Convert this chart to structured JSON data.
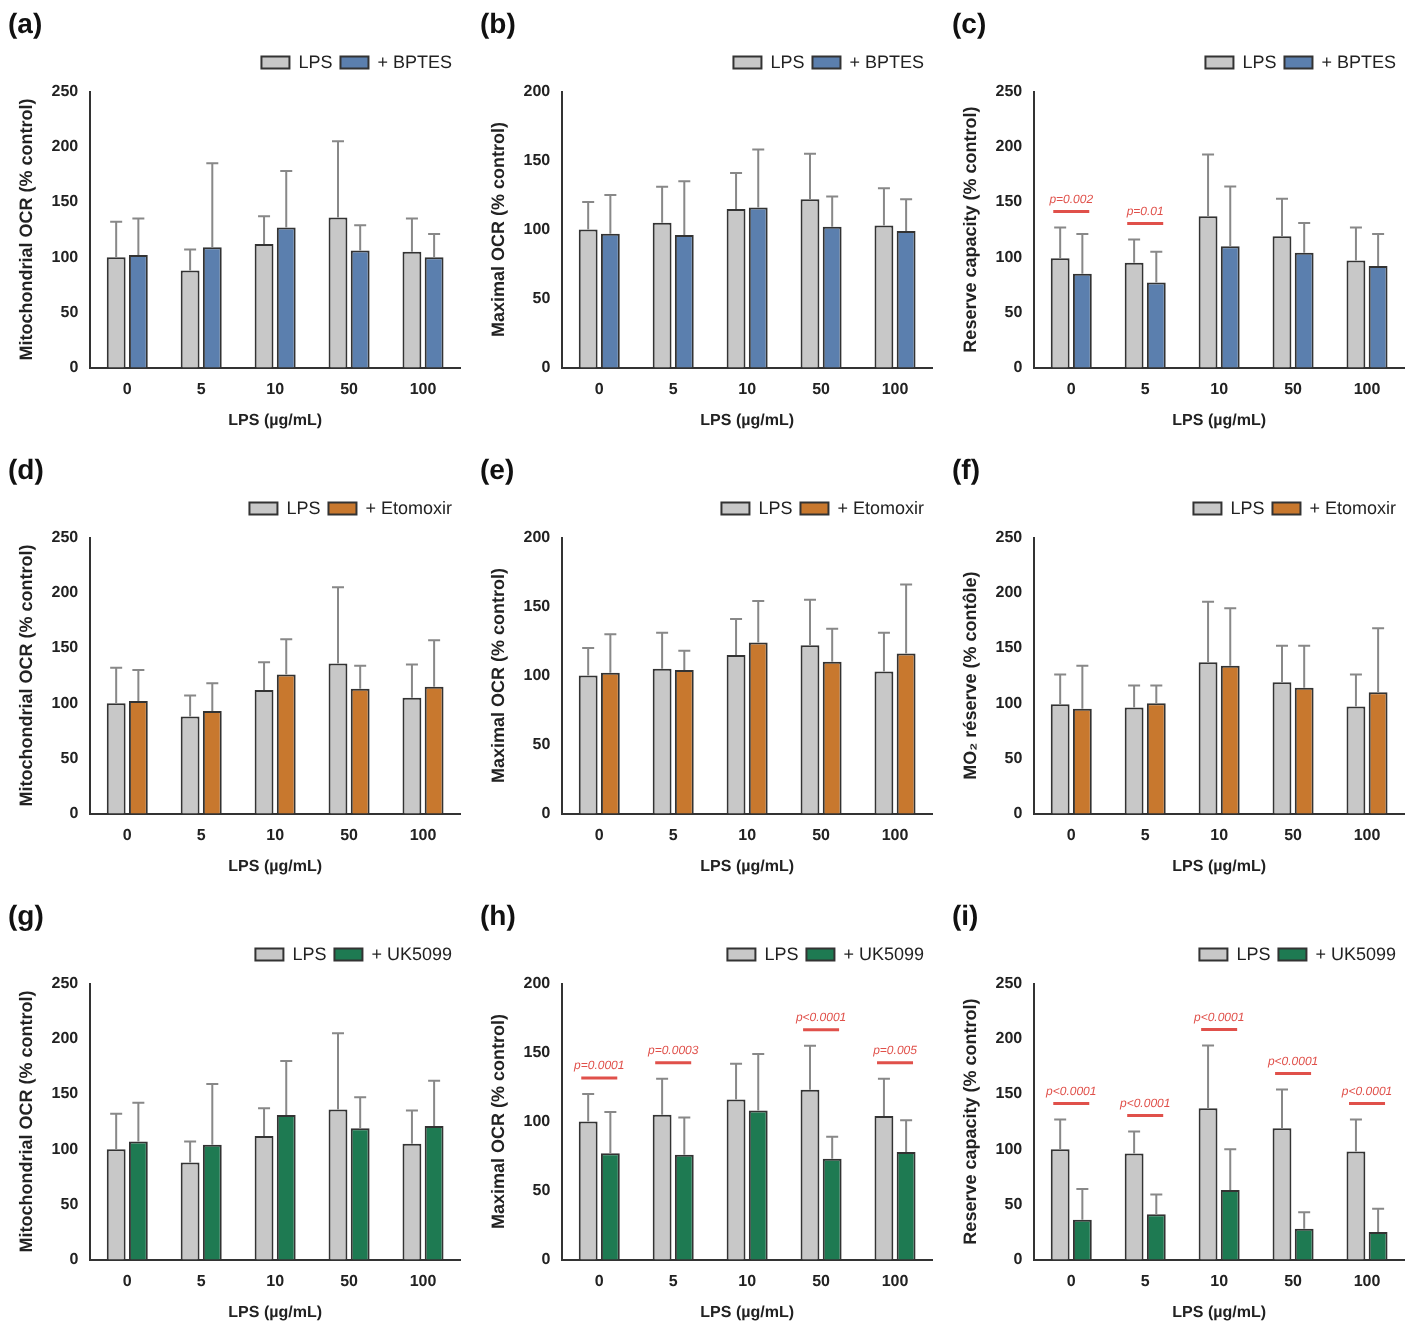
{
  "chart_data": [
    {
      "type": "bar",
      "title": "(a)",
      "xlabel": "LPS (µg/mL)",
      "ylabel": "Mitochondrial OCR (% control)",
      "categories": [
        "0",
        "5",
        "10",
        "50",
        "100"
      ],
      "ylim": [
        0,
        250
      ],
      "yticks": [
        0,
        50,
        100,
        150,
        200,
        250
      ],
      "grid": false,
      "legend": "top right",
      "series": [
        {
          "name": "LPS",
          "color": "#c8c8c8",
          "values": [
            100,
            88,
            112,
            136,
            105
          ],
          "errors": [
            [
              100,
              132
            ],
            [
              88,
              107
            ],
            [
              112,
              137
            ],
            [
              136,
              205
            ],
            [
              105,
              135
            ]
          ]
        },
        {
          "name": "+ BPTES",
          "color": "#5b7fae",
          "values": [
            102,
            109,
            127,
            106,
            100
          ],
          "errors": [
            [
              102,
              135
            ],
            [
              109,
              185
            ],
            [
              127,
              178
            ],
            [
              106,
              129
            ],
            [
              100,
              121
            ]
          ]
        }
      ]
    },
    {
      "type": "bar",
      "title": "(b)",
      "xlabel": "LPS (µg/mL)",
      "ylabel": "Maximal OCR (% control)",
      "categories": [
        "0",
        "5",
        "10",
        "50",
        "100"
      ],
      "ylim": [
        0,
        200
      ],
      "yticks": [
        0,
        50,
        100,
        150,
        200
      ],
      "grid": false,
      "legend": "top right",
      "series": [
        {
          "name": "LPS",
          "color": "#c8c8c8",
          "values": [
            100,
            105,
            115,
            122,
            103
          ],
          "errors": [
            [
              100,
              120
            ],
            [
              105,
              131
            ],
            [
              115,
              141
            ],
            [
              122,
              155
            ],
            [
              103,
              130
            ]
          ]
        },
        {
          "name": "+ BPTES",
          "color": "#5b7fae",
          "values": [
            97,
            96,
            116,
            102,
            99
          ],
          "errors": [
            [
              97,
              125
            ],
            [
              96,
              135
            ],
            [
              116,
              158
            ],
            [
              102,
              124
            ],
            [
              99,
              122
            ]
          ]
        }
      ]
    },
    {
      "type": "bar",
      "title": "(c)",
      "xlabel": "LPS (µg/mL)",
      "ylabel": "Reserve capacity (% control)",
      "categories": [
        "0",
        "5",
        "10",
        "50",
        "100"
      ],
      "ylim": [
        0,
        250
      ],
      "yticks": [
        0,
        50,
        100,
        150,
        200,
        250
      ],
      "grid": false,
      "legend": "top right",
      "series": [
        {
          "name": "LPS",
          "color": "#c8c8c8",
          "values": [
            99,
            95,
            137,
            119,
            97
          ],
          "errors": [
            [
              99,
              127
            ],
            [
              95,
              116
            ],
            [
              137,
              193
            ],
            [
              119,
              153
            ],
            [
              97,
              127
            ]
          ]
        },
        {
          "name": "+ BPTES",
          "color": "#5b7fae",
          "values": [
            85,
            77,
            110,
            104,
            92
          ],
          "errors": [
            [
              85,
              121
            ],
            [
              77,
              105
            ],
            [
              110,
              164
            ],
            [
              104,
              131
            ],
            [
              92,
              121
            ]
          ]
        }
      ],
      "annotations": [
        {
          "text": "p=0.002",
          "x": "0",
          "y": 127
        },
        {
          "text": "p=0.01",
          "x": "5",
          "y": 116
        }
      ]
    },
    {
      "type": "bar",
      "title": "(d)",
      "xlabel": "LPS (µg/mL)",
      "ylabel": "Mitochondrial OCR (% control)",
      "categories": [
        "0",
        "5",
        "10",
        "50",
        "100"
      ],
      "ylim": [
        0,
        250
      ],
      "yticks": [
        0,
        50,
        100,
        150,
        200,
        250
      ],
      "grid": false,
      "legend": "top right",
      "series": [
        {
          "name": "LPS",
          "color": "#c8c8c8",
          "values": [
            100,
            88,
            112,
            136,
            105
          ],
          "errors": [
            [
              100,
              132
            ],
            [
              88,
              107
            ],
            [
              112,
              137
            ],
            [
              136,
              205
            ],
            [
              105,
              135
            ]
          ]
        },
        {
          "name": "+ Etomoxir",
          "color": "#c8782e",
          "values": [
            102,
            93,
            126,
            113,
            115
          ],
          "errors": [
            [
              102,
              130
            ],
            [
              93,
              118
            ],
            [
              126,
              158
            ],
            [
              113,
              134
            ],
            [
              115,
              157
            ]
          ]
        }
      ]
    },
    {
      "type": "bar",
      "title": "(e)",
      "xlabel": "LPS (µg/mL)",
      "ylabel": "Maximal OCR (% control)",
      "categories": [
        "0",
        "5",
        "10",
        "50",
        "100"
      ],
      "ylim": [
        0,
        200
      ],
      "yticks": [
        0,
        50,
        100,
        150,
        200
      ],
      "grid": false,
      "legend": "top right",
      "series": [
        {
          "name": "LPS",
          "color": "#c8c8c8",
          "values": [
            100,
            105,
            115,
            122,
            103
          ],
          "errors": [
            [
              100,
              120
            ],
            [
              105,
              131
            ],
            [
              115,
              141
            ],
            [
              122,
              155
            ],
            [
              103,
              131
            ]
          ]
        },
        {
          "name": "+ Etomoxir",
          "color": "#c8782e",
          "values": [
            102,
            104,
            124,
            110,
            116
          ],
          "errors": [
            [
              102,
              130
            ],
            [
              104,
              118
            ],
            [
              124,
              154
            ],
            [
              110,
              134
            ],
            [
              116,
              166
            ]
          ]
        }
      ]
    },
    {
      "type": "bar",
      "title": "(f)",
      "xlabel": "LPS (µg/mL)",
      "ylabel": "MO₂ réserve (% contôle)",
      "categories": [
        "0",
        "5",
        "10",
        "50",
        "100"
      ],
      "ylim": [
        0,
        250
      ],
      "yticks": [
        0,
        50,
        100,
        150,
        200,
        250
      ],
      "grid": false,
      "legend": "top right",
      "series": [
        {
          "name": "LPS",
          "color": "#c8c8c8",
          "values": [
            99,
            96,
            137,
            119,
            97
          ],
          "errors": [
            [
              99,
              126
            ],
            [
              96,
              116
            ],
            [
              137,
              192
            ],
            [
              119,
              152
            ],
            [
              97,
              126
            ]
          ]
        },
        {
          "name": "+ Etomoxir",
          "color": "#c8782e",
          "values": [
            95,
            100,
            134,
            114,
            110
          ],
          "errors": [
            [
              95,
              134
            ],
            [
              100,
              116
            ],
            [
              134,
              186
            ],
            [
              114,
              152
            ],
            [
              110,
              168
            ]
          ]
        }
      ]
    },
    {
      "type": "bar",
      "title": "(g)",
      "xlabel": "LPS (µg/mL)",
      "ylabel": "Mitochondrial OCR (% control)",
      "categories": [
        "0",
        "5",
        "10",
        "50",
        "100"
      ],
      "ylim": [
        0,
        250
      ],
      "yticks": [
        0,
        50,
        100,
        150,
        200,
        250
      ],
      "grid": false,
      "legend": "top right",
      "series": [
        {
          "name": "LPS",
          "color": "#c8c8c8",
          "values": [
            100,
            88,
            112,
            136,
            105
          ],
          "errors": [
            [
              100,
              132
            ],
            [
              88,
              107
            ],
            [
              112,
              137
            ],
            [
              136,
              205
            ],
            [
              105,
              135
            ]
          ]
        },
        {
          "name": "+ UK5099",
          "color": "#1e7a52",
          "values": [
            107,
            104,
            131,
            119,
            121
          ],
          "errors": [
            [
              107,
              142
            ],
            [
              104,
              159
            ],
            [
              131,
              180
            ],
            [
              119,
              147
            ],
            [
              121,
              162
            ]
          ]
        }
      ]
    },
    {
      "type": "bar",
      "title": "(h)",
      "xlabel": "LPS (µg/mL)",
      "ylabel": "Maximal OCR (% control)",
      "categories": [
        "0",
        "5",
        "10",
        "50",
        "100"
      ],
      "ylim": [
        0,
        200
      ],
      "yticks": [
        0,
        50,
        100,
        150,
        200
      ],
      "grid": false,
      "legend": "top right",
      "series": [
        {
          "name": "LPS",
          "color": "#c8c8c8",
          "values": [
            100,
            105,
            116,
            123,
            104
          ],
          "errors": [
            [
              100,
              120
            ],
            [
              105,
              131
            ],
            [
              116,
              142
            ],
            [
              123,
              155
            ],
            [
              104,
              131
            ]
          ]
        },
        {
          "name": "+ UK5099",
          "color": "#1e7a52",
          "values": [
            77,
            76,
            108,
            73,
            78
          ],
          "errors": [
            [
              77,
              107
            ],
            [
              76,
              103
            ],
            [
              108,
              149
            ],
            [
              73,
              89
            ],
            [
              78,
              101
            ]
          ]
        }
      ],
      "annotations": [
        {
          "text": "p=0.0001",
          "x": "0",
          "y": 120
        },
        {
          "text": "p=0.0003",
          "x": "5",
          "y": 131
        },
        {
          "text": "p<0.0001",
          "x": "50",
          "y": 155
        },
        {
          "text": "p=0.005",
          "x": "100",
          "y": 131
        }
      ]
    },
    {
      "type": "bar",
      "title": "(i)",
      "xlabel": "LPS (µg/mL)",
      "ylabel": "Reserve capacity (% control)",
      "categories": [
        "0",
        "5",
        "10",
        "50",
        "100"
      ],
      "ylim": [
        0,
        250
      ],
      "yticks": [
        0,
        50,
        100,
        150,
        200,
        250
      ],
      "grid": false,
      "legend": "top right",
      "series": [
        {
          "name": "LPS",
          "color": "#c8c8c8",
          "values": [
            100,
            96,
            137,
            119,
            98
          ],
          "errors": [
            [
              100,
              127
            ],
            [
              96,
              116
            ],
            [
              137,
              194
            ],
            [
              119,
              154
            ],
            [
              98,
              127
            ]
          ]
        },
        {
          "name": "+ UK5099",
          "color": "#1e7a52",
          "values": [
            36,
            41,
            63,
            28,
            25
          ],
          "errors": [
            [
              36,
              64
            ],
            [
              41,
              59
            ],
            [
              63,
              100
            ],
            [
              28,
              43
            ],
            [
              25,
              46
            ]
          ]
        }
      ],
      "annotations": [
        {
          "text": "p<0.0001",
          "x": "0",
          "y": 127
        },
        {
          "text": "p<0.0001",
          "x": "5",
          "y": 116
        },
        {
          "text": "p<0.0001",
          "x": "10",
          "y": 194
        },
        {
          "text": "p<0.0001",
          "x": "50",
          "y": 154
        },
        {
          "text": "p<0.0001",
          "x": "100",
          "y": 127
        }
      ]
    }
  ]
}
